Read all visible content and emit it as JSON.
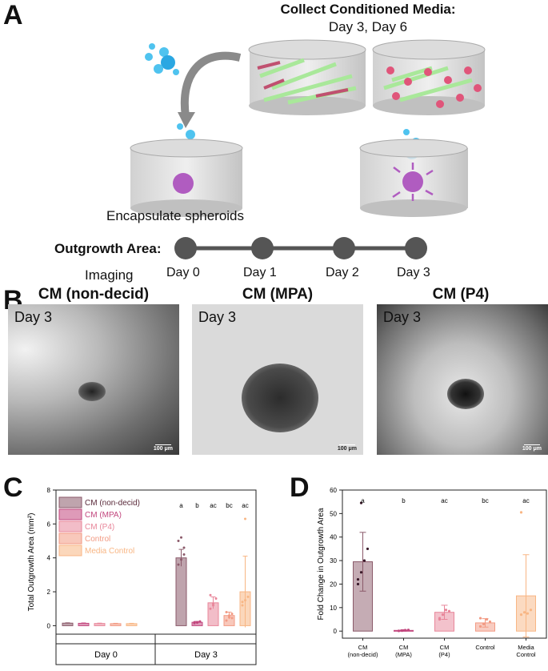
{
  "panelA": {
    "letter": "A",
    "collect_title": "Collect Conditioned Media:",
    "collect_days": "Day 3, Day 6",
    "encapsulate": "Encapsulate spheroids",
    "outgrowth_label": "Outgrowth Area:",
    "imaging_label": "Imaging",
    "timeline_days": [
      "Day 0",
      "Day 1",
      "Day 2",
      "Day 3"
    ],
    "colors": {
      "bubble": "#4fc3ef",
      "spheroid": "#b05cc0",
      "fibroblast": "#a9e89a",
      "cell": "#e0557a"
    }
  },
  "panelB": {
    "letter": "B",
    "images": [
      {
        "title": "CM (non-decid)",
        "day": "Day 3",
        "scale": "100 μm"
      },
      {
        "title": "CM (MPA)",
        "day": "Day 3",
        "scale": "100 μm"
      },
      {
        "title": "CM (P4)",
        "day": "Day 3",
        "scale": "100 μm"
      }
    ]
  },
  "panelC": {
    "letter": "C",
    "ylabel": "Total Outgrowth Area (mm²)",
    "yticks": [
      "0",
      "2",
      "4",
      "6",
      "8"
    ],
    "legend": [
      "CM (non-decid)",
      "CM (MPA)",
      "CM (P4)",
      "Control",
      "Media Control"
    ],
    "groups": [
      "Day 0",
      "Day 3"
    ],
    "letters_day3": [
      "a",
      "b",
      "ac",
      "bc",
      "ac"
    ]
  },
  "panelD": {
    "letter": "D",
    "ylabel": "Fold Change in Outgrowth Area",
    "yticks": [
      "0",
      "10",
      "20",
      "30",
      "40",
      "50",
      "60"
    ],
    "letters": [
      "a",
      "b",
      "ac",
      "bc",
      "ac"
    ],
    "categories": [
      [
        "CM",
        "(non-decid)"
      ],
      [
        "CM",
        "(MPA)"
      ],
      [
        "CM",
        "(P4)"
      ],
      [
        "Control"
      ],
      [
        "Media",
        "Control"
      ]
    ]
  },
  "chart_data": [
    {
      "type": "bar",
      "title": "",
      "ylabel": "Total Outgrowth Area (mm²)",
      "ylim": [
        -0.5,
        8
      ],
      "categories": [
        "Day 0",
        "Day 3"
      ],
      "series": [
        {
          "name": "CM (non-decid)",
          "color": "#8b5a6a",
          "values": [
            0.15,
            4.0
          ],
          "err": [
            0.02,
            0.5
          ]
        },
        {
          "name": "CM (MPA)",
          "color": "#c2477e",
          "values": [
            0.14,
            0.2
          ],
          "err": [
            0.02,
            0.05
          ]
        },
        {
          "name": "CM (P4)",
          "color": "#e8869a",
          "values": [
            0.13,
            1.35
          ],
          "err": [
            0.02,
            0.35
          ]
        },
        {
          "name": "Control",
          "color": "#f29a83",
          "values": [
            0.12,
            0.6
          ],
          "err": [
            0.02,
            0.2
          ]
        },
        {
          "name": "Media Control",
          "color": "#f8b684",
          "values": [
            0.12,
            2.0
          ],
          "err": [
            0.02,
            2.1
          ]
        }
      ],
      "points_day3": [
        [
          3.6,
          3.9,
          4.2,
          5.0,
          5.2,
          4.6
        ],
        [
          0.15,
          0.2,
          0.25,
          0.2,
          0.18
        ],
        [
          1.0,
          1.3,
          1.6,
          1.8,
          1.2
        ],
        [
          0.3,
          0.5,
          0.7,
          0.8,
          0.6,
          0.45
        ],
        [
          1.2,
          1.5,
          1.7,
          1.4,
          6.3
        ]
      ],
      "significance": [
        "a",
        "b",
        "ac",
        "bc",
        "ac"
      ]
    },
    {
      "type": "bar",
      "title": "",
      "ylabel": "Fold Change in Outgrowth Area",
      "ylim": [
        -3,
        60
      ],
      "categories": [
        "CM (non-decid)",
        "CM (MPA)",
        "CM (P4)",
        "Control",
        "Media Control"
      ],
      "values": [
        29.5,
        0.3,
        8.0,
        3.5,
        15.0
      ],
      "err": [
        12.5,
        0.3,
        3.0,
        1.8,
        17.5
      ],
      "colors": [
        "#8b5a6a",
        "#c2477e",
        "#e8869a",
        "#f29a83",
        "#f8b684"
      ],
      "points": [
        [
          22,
          25,
          30,
          35,
          20,
          54.5
        ],
        [
          0.1,
          0.2,
          0.4,
          0.5
        ],
        [
          5,
          7,
          9,
          8.5,
          5.5
        ],
        [
          2,
          3,
          5,
          4,
          5.5
        ],
        [
          7,
          8,
          7.5,
          9,
          50.5
        ]
      ],
      "significance": [
        "a",
        "b",
        "ac",
        "bc",
        "ac"
      ]
    }
  ]
}
